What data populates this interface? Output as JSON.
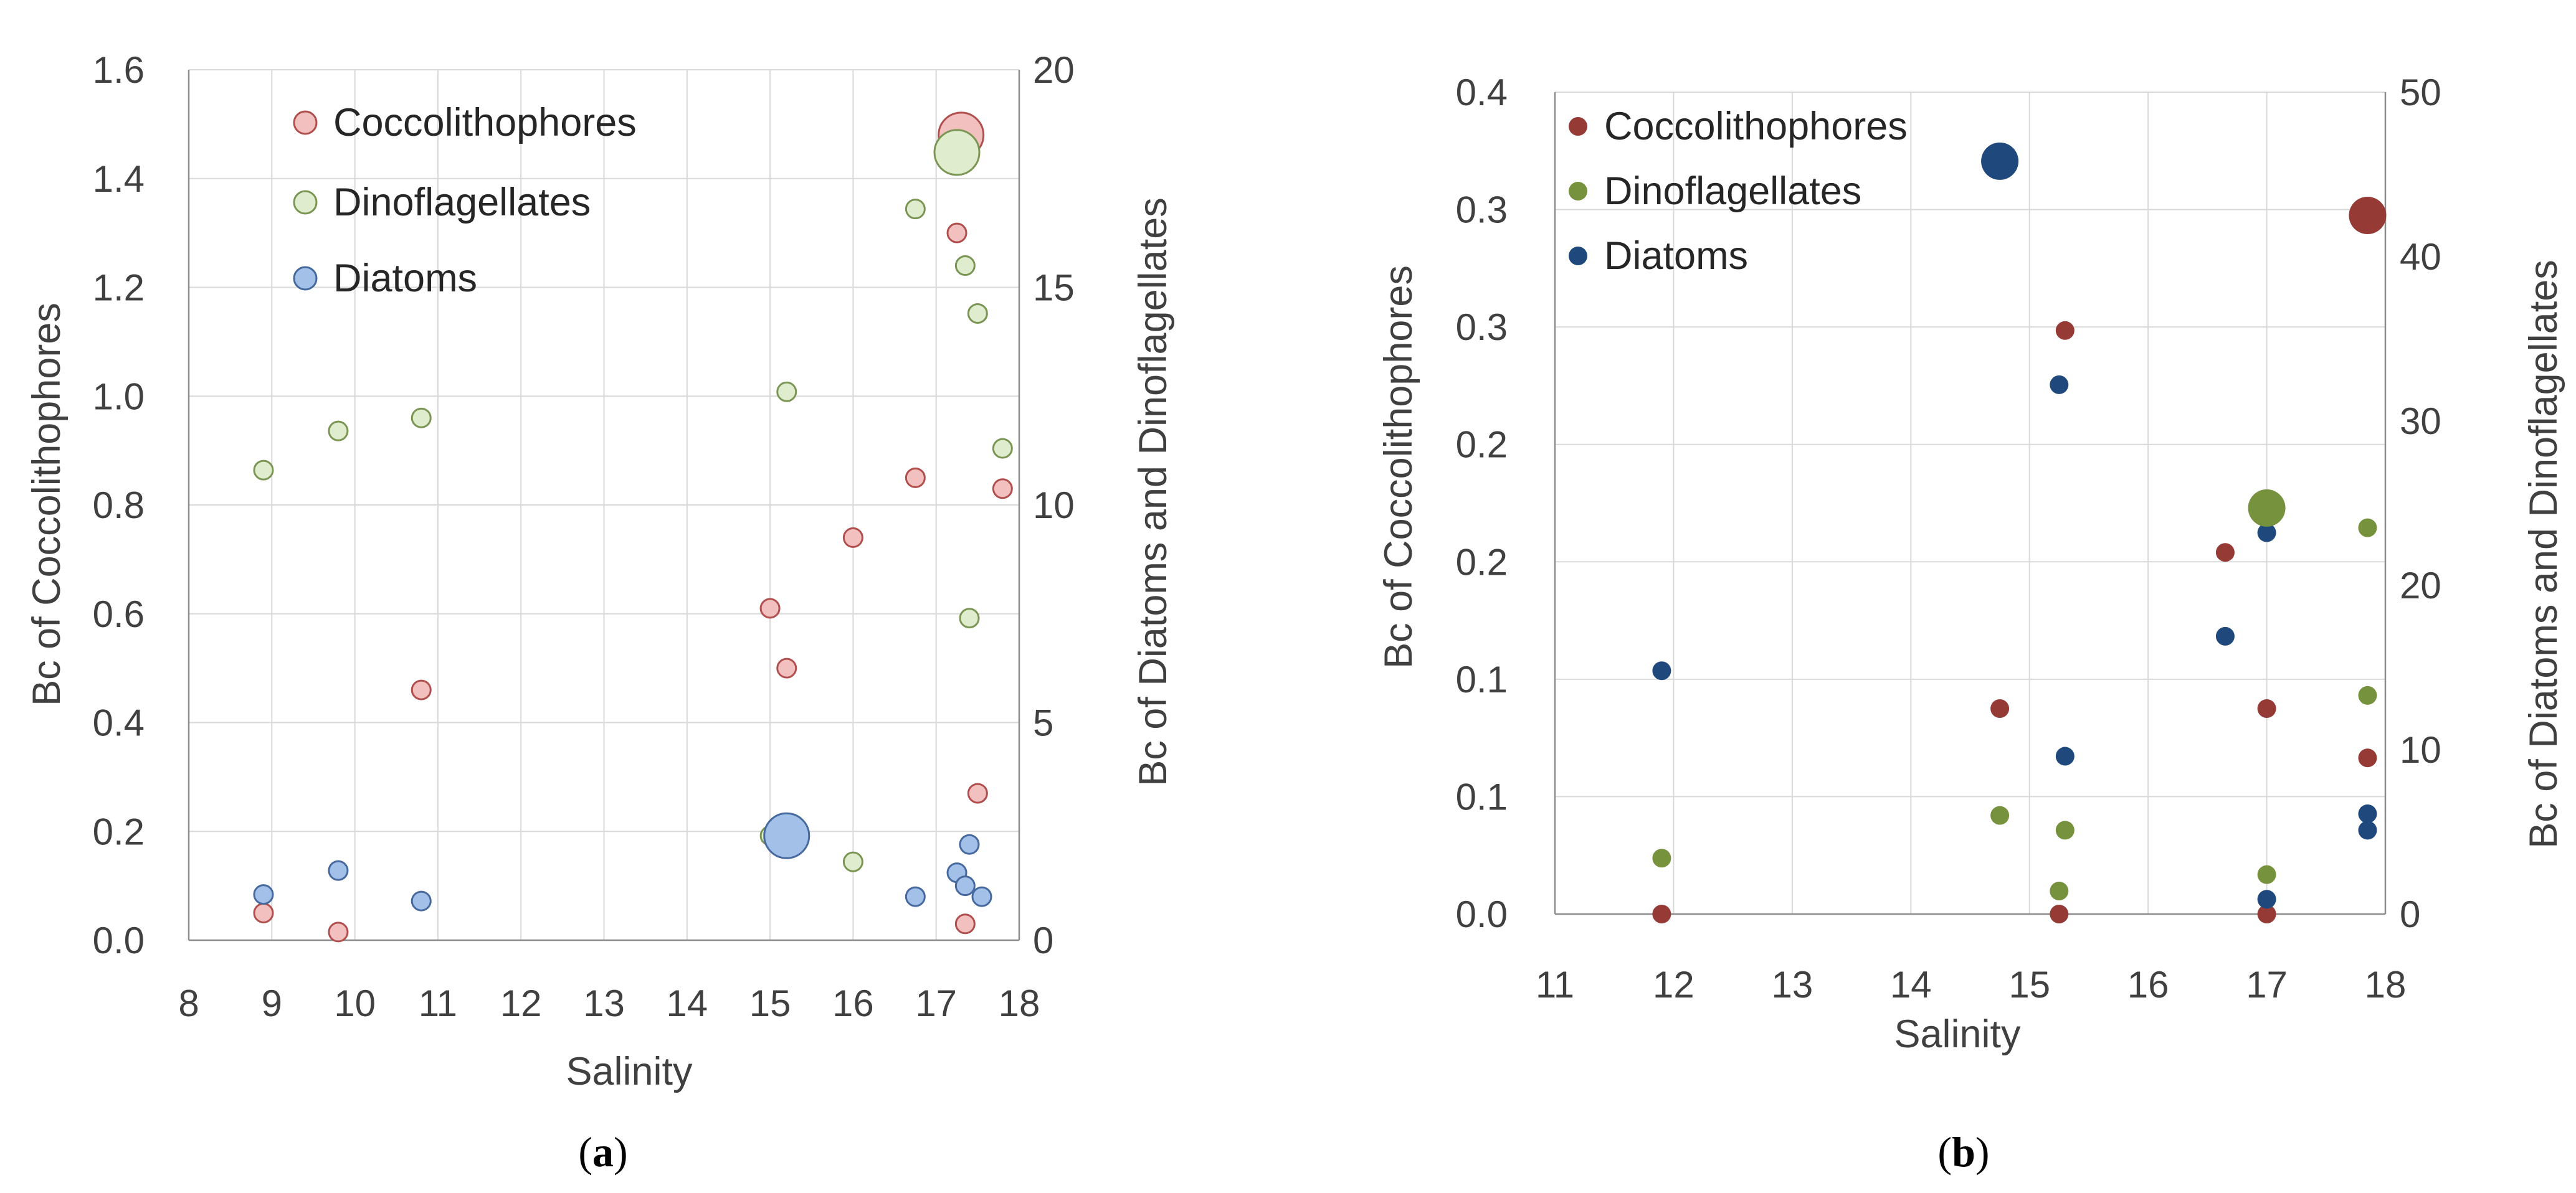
{
  "chart_data": [
    {
      "type": "scatter",
      "panel": "(a)",
      "panel_letter": "a",
      "xlabel": "Salinity",
      "ylabel_left": "Bc of Coccolithophores",
      "ylabel_right": "Bc of Diatoms and Dinoflagellates",
      "xlim": [
        8,
        18
      ],
      "ylim_left": [
        0,
        1.6
      ],
      "ylim_right": [
        0,
        20
      ],
      "x_ticks": [
        "8",
        "9",
        "10",
        "11",
        "12",
        "13",
        "14",
        "15",
        "16",
        "17",
        "18"
      ],
      "y_left_ticks": [
        "0.0",
        "0.2",
        "0.4",
        "0.6",
        "0.8",
        "1.0",
        "1.2",
        "1.4",
        "1.6"
      ],
      "y_right_ticks": [
        "0",
        "5",
        "10",
        "15",
        "20"
      ],
      "legend": [
        "Coccolithophores",
        "Dinoflagellates",
        "Diatoms"
      ],
      "series": [
        {
          "name": "Coccolithophores",
          "axis": "left",
          "color": "#f2c0bf",
          "stroke": "#b04f4d",
          "points": [
            {
              "x": 8.9,
              "y": 0.05
            },
            {
              "x": 9.8,
              "y": 0.015
            },
            {
              "x": 10.8,
              "y": 0.46
            },
            {
              "x": 15.0,
              "y": 0.61
            },
            {
              "x": 15.2,
              "y": 0.5
            },
            {
              "x": 16.0,
              "y": 0.74
            },
            {
              "x": 16.75,
              "y": 0.85
            },
            {
              "x": 17.25,
              "y": 1.3
            },
            {
              "x": 17.3,
              "y": 1.48,
              "big": true
            },
            {
              "x": 17.35,
              "y": 0.03
            },
            {
              "x": 17.5,
              "y": 0.27
            },
            {
              "x": 17.8,
              "y": 0.83
            }
          ]
        },
        {
          "name": "Dinoflagellates",
          "axis": "right",
          "color": "#dfeccd",
          "stroke": "#7b9654",
          "points": [
            {
              "x": 8.9,
              "y": 10.8
            },
            {
              "x": 9.8,
              "y": 11.7
            },
            {
              "x": 10.8,
              "y": 12.0
            },
            {
              "x": 15.0,
              "y": 2.4
            },
            {
              "x": 15.2,
              "y": 12.6
            },
            {
              "x": 16.0,
              "y": 1.8
            },
            {
              "x": 16.75,
              "y": 16.8
            },
            {
              "x": 17.25,
              "y": 18.1,
              "big": true
            },
            {
              "x": 17.35,
              "y": 15.5
            },
            {
              "x": 17.4,
              "y": 7.4
            },
            {
              "x": 17.5,
              "y": 14.4
            },
            {
              "x": 17.8,
              "y": 11.3
            }
          ]
        },
        {
          "name": "Diatoms",
          "axis": "right",
          "color": "#a3c0e9",
          "stroke": "#46699e",
          "points": [
            {
              "x": 8.9,
              "y": 1.05
            },
            {
              "x": 9.8,
              "y": 1.6
            },
            {
              "x": 10.8,
              "y": 0.9
            },
            {
              "x": 15.2,
              "y": 2.4,
              "big": true
            },
            {
              "x": 16.75,
              "y": 1.0
            },
            {
              "x": 17.25,
              "y": 1.55
            },
            {
              "x": 17.35,
              "y": 1.25
            },
            {
              "x": 17.4,
              "y": 2.2
            },
            {
              "x": 17.55,
              "y": 1.0
            }
          ]
        }
      ]
    },
    {
      "type": "scatter",
      "panel": "(b)",
      "panel_letter": "b",
      "xlabel": "Salinity",
      "ylabel_left": "Bc of Coccolithophores",
      "ylabel_right": "Bc of Diatoms and Dinoflagellates",
      "xlim": [
        11,
        18
      ],
      "ylim_left": [
        0,
        0.4
      ],
      "ylim_right": [
        0,
        50
      ],
      "x_ticks": [
        "11",
        "12",
        "13",
        "14",
        "15",
        "16",
        "17",
        "18"
      ],
      "y_left_ticks": [
        "0.0",
        "0.1",
        "0.1",
        "0.2",
        "0.2",
        "0.3",
        "0.3",
        "0.4"
      ],
      "y_right_ticks": [
        "0",
        "10",
        "20",
        "30",
        "40",
        "50"
      ],
      "legend": [
        "Coccolithophores",
        "Dinoflagellates",
        "Diatoms"
      ],
      "series": [
        {
          "name": "Coccolithophores",
          "axis": "left",
          "color": "#963a36",
          "points": [
            {
              "x": 11.9,
              "y": 0.0
            },
            {
              "x": 14.75,
              "y": 0.1
            },
            {
              "x": 15.25,
              "y": 0.0
            },
            {
              "x": 15.3,
              "y": 0.284
            },
            {
              "x": 16.65,
              "y": 0.176
            },
            {
              "x": 17.0,
              "y": 0.1
            },
            {
              "x": 17.0,
              "y": 0.0
            },
            {
              "x": 17.85,
              "y": 0.076
            },
            {
              "x": 17.85,
              "y": 0.34,
              "big": true
            }
          ]
        },
        {
          "name": "Dinoflagellates",
          "axis": "right",
          "color": "#76923c",
          "points": [
            {
              "x": 11.9,
              "y": 3.4
            },
            {
              "x": 14.75,
              "y": 6.0
            },
            {
              "x": 15.25,
              "y": 1.4
            },
            {
              "x": 15.3,
              "y": 5.1
            },
            {
              "x": 17.0,
              "y": 2.4
            },
            {
              "x": 17.0,
              "y": 24.7,
              "big": true
            },
            {
              "x": 17.85,
              "y": 13.3
            },
            {
              "x": 17.85,
              "y": 23.5
            }
          ]
        },
        {
          "name": "Diatoms",
          "axis": "right",
          "color": "#1f497d",
          "points": [
            {
              "x": 11.9,
              "y": 14.8
            },
            {
              "x": 14.75,
              "y": 45.8,
              "big": true
            },
            {
              "x": 15.25,
              "y": 32.2
            },
            {
              "x": 15.3,
              "y": 9.6
            },
            {
              "x": 16.65,
              "y": 16.9
            },
            {
              "x": 17.0,
              "y": 23.2
            },
            {
              "x": 17.0,
              "y": 0.9
            },
            {
              "x": 17.85,
              "y": 6.1
            },
            {
              "x": 17.85,
              "y": 5.1
            }
          ]
        }
      ]
    }
  ]
}
